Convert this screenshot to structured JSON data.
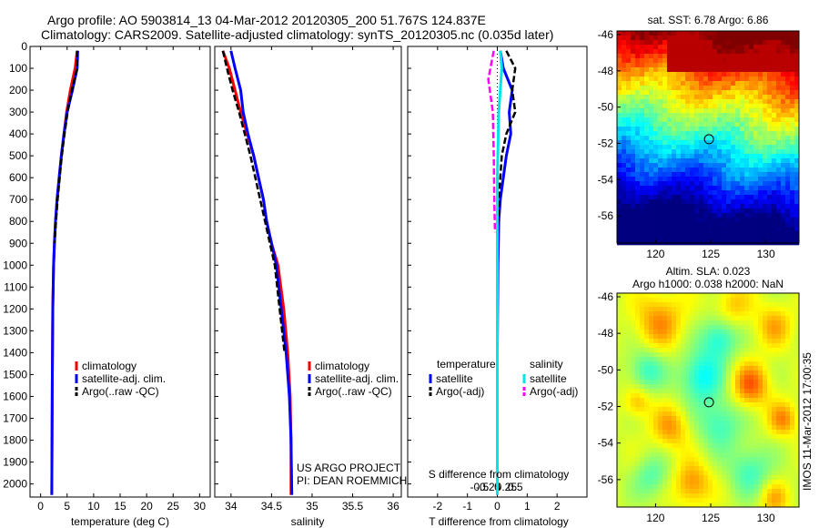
{
  "header": {
    "line1": "Argo profile: AO 5903814_13 04-Mar-2012 20120305_200 51.767S 124.837E",
    "line2": "Climatology: CARS2009. Satellite-adjusted climatology: synTS_20120305.nc (0.035d later)"
  },
  "colors": {
    "climatology": "#ff0000",
    "satellite": "#0000ff",
    "argo": "#000000",
    "sat_salinity": "#00e5e5",
    "argo_salinity": "#ff00ff"
  },
  "chart_data": [
    {
      "type": "line",
      "name": "temperature-profile",
      "xlabel": "temperature (deg C)",
      "ylabel": "",
      "xlim": [
        -2,
        32
      ],
      "xticks": [
        0,
        5,
        10,
        15,
        20,
        25,
        30
      ],
      "ylim": [
        0,
        2060
      ],
      "yticks": [
        0,
        100,
        200,
        300,
        400,
        500,
        600,
        700,
        800,
        900,
        1000,
        1100,
        1200,
        1300,
        1400,
        1500,
        1600,
        1700,
        1800,
        1900,
        2000
      ],
      "legend": [
        "climatology",
        "satellite-adj. clim.",
        "Argo(..raw -QC)"
      ],
      "series": [
        {
          "name": "climatology",
          "color": "#ff0000",
          "x": [
            6.9,
            6.5,
            5.6,
            4.9,
            4.4,
            3.9,
            3.5,
            3.1,
            2.8,
            2.6,
            2.45,
            2.3,
            2.2,
            2.1
          ],
          "y": [
            20,
            100,
            200,
            300,
            400,
            500,
            600,
            700,
            800,
            900,
            1000,
            1200,
            1500,
            2050
          ]
        },
        {
          "name": "satellite-adj. clim.",
          "color": "#0000ff",
          "x": [
            7.0,
            6.9,
            6.0,
            5.0,
            4.4,
            3.9,
            3.5,
            3.1,
            2.8,
            2.6,
            2.45,
            2.3,
            2.2,
            2.1
          ],
          "y": [
            20,
            100,
            200,
            300,
            400,
            500,
            600,
            700,
            800,
            900,
            1000,
            1200,
            1500,
            2050
          ]
        },
        {
          "name": "Argo(..raw -QC)",
          "color": "#000000",
          "dashed": true,
          "x": [
            6.9,
            6.9,
            5.9,
            5.1,
            4.5,
            4.0,
            3.6,
            3.2,
            2.9,
            2.6
          ],
          "y": [
            20,
            100,
            200,
            300,
            400,
            500,
            600,
            700,
            800,
            900
          ]
        }
      ]
    },
    {
      "type": "line",
      "name": "salinity-profile",
      "xlabel": "salinity",
      "ylabel": "",
      "xlim": [
        33.8,
        36.1
      ],
      "xticks": [
        34,
        34.5,
        35,
        35.5,
        36
      ],
      "ylim": [
        0,
        2060
      ],
      "legend": [
        "climatology",
        "satellite-adj. clim.",
        "Argo(..raw -QC)"
      ],
      "annotation": [
        "US ARGO PROJECT",
        "PI: DEAN ROEMMICH"
      ],
      "series": [
        {
          "name": "climatology",
          "color": "#ff0000",
          "x": [
            33.9,
            33.98,
            34.05,
            34.12,
            34.2,
            34.28,
            34.34,
            34.4,
            34.44,
            34.5,
            34.58,
            34.65,
            34.7,
            34.73,
            34.74,
            34.74
          ],
          "y": [
            20,
            100,
            200,
            300,
            400,
            500,
            600,
            700,
            800,
            900,
            1000,
            1200,
            1400,
            1600,
            1800,
            2050
          ]
        },
        {
          "name": "satellite-adj. clim.",
          "color": "#0000ff",
          "x": [
            34.0,
            34.05,
            34.12,
            34.15,
            34.21,
            34.28,
            34.34,
            34.4,
            34.44,
            34.5,
            34.56,
            34.62,
            34.68,
            34.72,
            34.74,
            34.75
          ],
          "y": [
            20,
            100,
            200,
            300,
            400,
            500,
            600,
            700,
            800,
            900,
            1000,
            1200,
            1400,
            1600,
            1800,
            2050
          ]
        },
        {
          "name": "Argo(..raw -QC)",
          "color": "#000000",
          "dashed": true,
          "x": [
            33.9,
            33.95,
            34.02,
            34.1,
            34.17,
            34.24,
            34.3,
            34.36,
            34.42,
            34.48,
            34.54,
            34.6,
            34.66
          ],
          "y": [
            20,
            100,
            200,
            300,
            400,
            500,
            600,
            700,
            800,
            900,
            1000,
            1200,
            1400
          ]
        }
      ]
    },
    {
      "type": "line",
      "name": "difference-from-climatology",
      "xlabel": "T difference from climatology",
      "top_axis_label": "S difference from climatology",
      "xlim": [
        -3,
        3
      ],
      "xticks": [
        -2,
        -1,
        0,
        1,
        2
      ],
      "top_xticks": [
        -0.5,
        -0.25,
        0,
        0.25,
        0.5
      ],
      "ylim": [
        0,
        2060
      ],
      "legend_headers": [
        "temperature",
        "salinity"
      ],
      "legend": [
        "satellite",
        "Argo(-adj)",
        "satellite",
        "Argo(-adj)"
      ],
      "series": [
        {
          "name": "temperature satellite",
          "color": "#0000ff",
          "x": [
            0.1,
            0.2,
            0.5,
            0.4,
            0.45,
            0.3,
            0.2,
            0.1,
            0.05,
            0.02,
            0.0,
            0.0,
            0.0
          ],
          "y": [
            20,
            100,
            200,
            300,
            400,
            500,
            600,
            700,
            800,
            1000,
            1400,
            1800,
            2050
          ]
        },
        {
          "name": "temperature Argo(-adj)",
          "color": "#000000",
          "dashed": true,
          "x": [
            0.3,
            0.6,
            0.5,
            0.6,
            0.3,
            0.15,
            0.1,
            0.05,
            0.0
          ],
          "y": [
            20,
            100,
            200,
            300,
            400,
            500,
            600,
            700,
            900
          ]
        },
        {
          "name": "salinity satellite",
          "color": "#00e5e5",
          "x": [
            0.1,
            0.15,
            0.05,
            0.0,
            0.0,
            0.0,
            0.0
          ],
          "y": [
            20,
            100,
            300,
            600,
            1000,
            1500,
            2050
          ]
        },
        {
          "name": "salinity Argo(-adj)",
          "color": "#ff00ff",
          "dashed": true,
          "x": [
            -0.12,
            -0.3,
            -0.15,
            -0.12,
            -0.1,
            -0.08
          ],
          "y": [
            20,
            150,
            300,
            500,
            700,
            850
          ]
        }
      ]
    },
    {
      "type": "heatmap",
      "name": "sst-map",
      "title": "sat. SST: 6.78 Argo: 6.86",
      "xticks": [
        120,
        125,
        130
      ],
      "yticks": [
        -46,
        -48,
        -50,
        -52,
        -54,
        -56
      ],
      "xlim": [
        116.5,
        133
      ],
      "ylim": [
        -57.5,
        -45.8
      ],
      "marker": {
        "lon": 124.84,
        "lat": -51.77
      }
    },
    {
      "type": "heatmap",
      "name": "sla-map",
      "title": "Altim. SLA: 0.023",
      "subtitle": "Argo h1000: 0.038 h2000: NaN",
      "xticks": [
        120,
        125,
        130
      ],
      "yticks": [
        -46,
        -48,
        -50,
        -52,
        -54,
        -56
      ],
      "xlim": [
        116.5,
        133
      ],
      "ylim": [
        -57.5,
        -45.8
      ],
      "marker": {
        "lon": 124.84,
        "lat": -51.77
      },
      "side_label": "IMOS 11-Mar-2012 17:00:35"
    }
  ]
}
